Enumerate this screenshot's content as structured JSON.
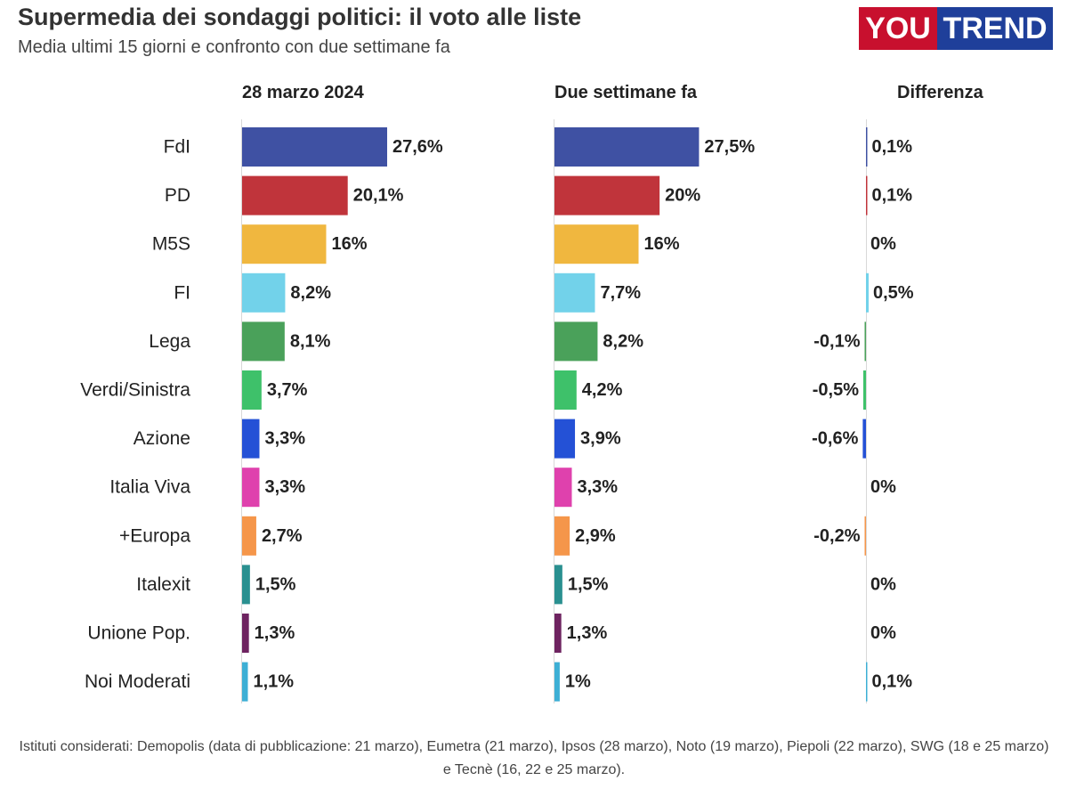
{
  "title": "Supermedia dei sondaggi politici: il voto alle liste",
  "subtitle": "Media ultimi 15 giorni e confronto con due settimane fa",
  "logo": {
    "part1": "YOU",
    "part2": "TREND",
    "color1": "#c8102e",
    "color2": "#1f3f9a"
  },
  "footnote": "Istituti considerati: Demopolis (data di pubblicazione: 21 marzo), Eumetra (21 marzo), Ipsos (28 marzo), Noto (19 marzo), Piepoli (22 marzo), SWG (18 e 25 marzo) e Tecnè (16, 22 e 25 marzo).",
  "chart_data": {
    "type": "bar",
    "orientation": "horizontal",
    "categories": [
      "FdI",
      "PD",
      "M5S",
      "FI",
      "Lega",
      "Verdi/Sinistra",
      "Azione",
      "Italia Viva",
      "+Europa",
      "Italexit",
      "Unione Pop.",
      "Noi Moderati"
    ],
    "colors": [
      "#3f51a3",
      "#c0343b",
      "#f0b73f",
      "#72d2ea",
      "#4aa15a",
      "#3ec16a",
      "#2451d6",
      "#df41ad",
      "#f5964a",
      "#2a9090",
      "#6e2360",
      "#3dafd5"
    ],
    "series": [
      {
        "name": "28 marzo 2024",
        "values": [
          27.6,
          20.1,
          16,
          8.2,
          8.1,
          3.7,
          3.3,
          3.3,
          2.7,
          1.5,
          1.3,
          1.1
        ],
        "labels": [
          "27,6%",
          "20,1%",
          "16%",
          "8,2%",
          "8,1%",
          "3,7%",
          "3,3%",
          "3,3%",
          "2,7%",
          "1,5%",
          "1,3%",
          "1,1%"
        ]
      },
      {
        "name": "Due settimane fa",
        "values": [
          27.5,
          20,
          16,
          7.7,
          8.2,
          4.2,
          3.9,
          3.3,
          2.9,
          1.5,
          1.3,
          1
        ],
        "labels": [
          "27,5%",
          "20%",
          "16%",
          "7,7%",
          "8,2%",
          "4,2%",
          "3,9%",
          "3,3%",
          "2,9%",
          "1,5%",
          "1,3%",
          "1%"
        ]
      },
      {
        "name": "Differenza",
        "values": [
          0.1,
          0.1,
          0,
          0.5,
          -0.1,
          -0.5,
          -0.6,
          0,
          -0.2,
          0,
          0,
          0.1
        ],
        "labels": [
          "0,1%",
          "0,1%",
          "0%",
          "0,5%",
          "-0,1%",
          "-0,5%",
          "-0,6%",
          "0%",
          "-0,2%",
          "0%",
          "0%",
          "0,1%"
        ]
      }
    ],
    "grid": false,
    "legend": "none"
  }
}
